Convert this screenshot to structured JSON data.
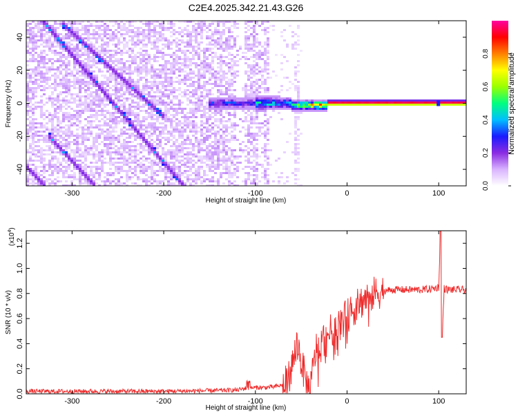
{
  "page_title": "C2E4.2025.342.21.43.G26",
  "chart_data": [
    {
      "type": "heatmap",
      "title": "C2E4.2025.342.21.43.G26",
      "xlabel": "Height of straight line (km)",
      "ylabel": "Frequency (Hz)",
      "xlim": [
        -350,
        130
      ],
      "ylim": [
        -50,
        50
      ],
      "xticks": [
        -300,
        -200,
        -100,
        0,
        100
      ],
      "xtick_labels": [
        "-300",
        "-200",
        "-100",
        "0",
        "100"
      ],
      "yticks": [
        -40,
        -20,
        0,
        20,
        40
      ],
      "ytick_labels": [
        "-40",
        "-20",
        "0",
        "20",
        "40"
      ],
      "grid": false,
      "colorbar": {
        "label": "Normalized spectral amplitude",
        "range": [
          0,
          1
        ],
        "ticks": [
          0,
          0.2,
          0.4,
          0.6,
          0.8
        ],
        "tick_labels": [
          "0.0",
          "0.2",
          "0.4",
          "0.6",
          "0.8"
        ],
        "colormap": [
          "#ffffff",
          "#d9b3ff",
          "#8a2be2",
          "#1a1aff",
          "#00bfff",
          "#00ff80",
          "#9aff00",
          "#ffff00",
          "#ff8000",
          "#ff0000",
          "#ff00a0"
        ]
      },
      "features": {
        "noise_region_x": [
          -350,
          -85
        ],
        "sparse_region_x": [
          -85,
          -50
        ],
        "diagonal_tracks": [
          {
            "x_start": -350,
            "y_start": 62,
            "x_end": -175,
            "y_end": -52
          },
          {
            "x_start": -340,
            "y_start": 55,
            "x_end": -178,
            "y_end": -50
          },
          {
            "x_start": -310,
            "y_start": 48,
            "x_end": -200,
            "y_end": -8
          },
          {
            "x_start": -325,
            "y_start": -20,
            "x_end": -275,
            "y_end": -50
          },
          {
            "x_start": -350,
            "y_start": -38,
            "x_end": -330,
            "y_end": -50
          }
        ],
        "central_band": {
          "x_start": -150,
          "x_end": 130,
          "freq_hz": 0,
          "peak_amplitude": 1.0
        }
      }
    },
    {
      "type": "line",
      "xlabel": "Height of straight line (km)",
      "ylabel": "SNR (10 * v/v)",
      "y_multiplier": "(x10^4)",
      "y_multiplier_base": "(x10",
      "y_multiplier_exp": "4",
      "y_multiplier_close": ")",
      "xlim": [
        -350,
        130
      ],
      "ylim": [
        0,
        1.3
      ],
      "xticks": [
        -300,
        -200,
        -100,
        0,
        100
      ],
      "xtick_labels": [
        "-300",
        "-200",
        "-100",
        "0",
        "100"
      ],
      "yticks": [
        0,
        0.2,
        0.4,
        0.6,
        0.8,
        1.0,
        1.2
      ],
      "ytick_labels": [
        "0.0",
        "0.2",
        "0.4",
        "0.6",
        "0.8",
        "1.0",
        "1.2"
      ],
      "grid": false,
      "series": [
        {
          "name": "SNR",
          "color": "#ee2a2a",
          "x": [
            -350,
            -300,
            -250,
            -200,
            -150,
            -120,
            -110,
            -100,
            -90,
            -80,
            -70,
            -65,
            -60,
            -55,
            -52,
            -50,
            -48,
            -45,
            -42,
            -40,
            -38,
            -35,
            -32,
            -30,
            -28,
            -25,
            -22,
            -20,
            -15,
            -10,
            -5,
            0,
            5,
            10,
            15,
            20,
            25,
            30,
            40,
            50,
            60,
            70,
            80,
            90,
            95,
            100,
            102,
            104,
            106,
            110,
            120,
            130
          ],
          "y": [
            0.02,
            0.02,
            0.02,
            0.02,
            0.025,
            0.03,
            0.045,
            0.05,
            0.05,
            0.055,
            0.07,
            0.1,
            0.22,
            0.4,
            0.34,
            0.26,
            0.2,
            0.1,
            0.05,
            0.03,
            0.15,
            0.3,
            0.42,
            0.3,
            0.4,
            0.44,
            0.46,
            0.48,
            0.52,
            0.55,
            0.58,
            0.62,
            0.66,
            0.69,
            0.73,
            0.76,
            0.78,
            0.8,
            0.82,
            0.83,
            0.83,
            0.83,
            0.83,
            0.835,
            0.84,
            0.85,
            1.3,
            0.5,
            0.84,
            0.83,
            0.83,
            0.83
          ]
        }
      ]
    }
  ]
}
